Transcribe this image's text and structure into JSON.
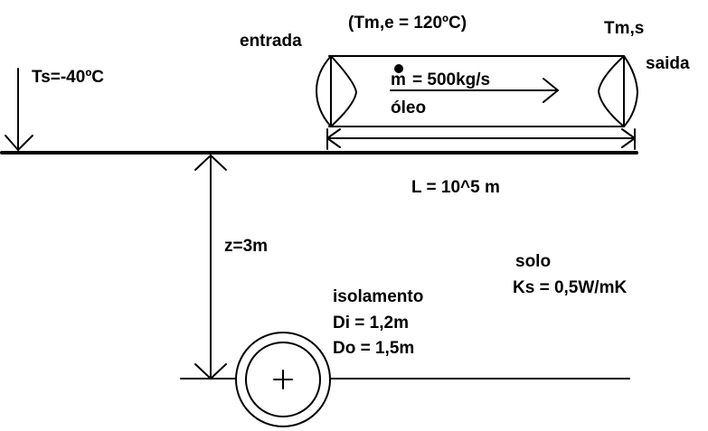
{
  "diagram": {
    "labels": {
      "inlet_temp": "(Tm,e = 120ºC)",
      "outlet_temp": "Tm,s",
      "inlet": "entrada",
      "outlet": "saida",
      "surface_temp": "Ts=-40ºC",
      "mass_flow_symbol": "m",
      "mass_flow": "= 500kg/s",
      "fluid": "óleo",
      "length": "L = 10^5 m",
      "depth": "z=3m",
      "soil": "solo",
      "soil_conductivity": "Ks = 0,5W/mK",
      "insulation": "isolamento",
      "inner_diameter": "Di = 1,2m",
      "outer_diameter": "Do = 1,5m"
    },
    "colors": {
      "ink": "#000000",
      "background": "#ffffff"
    }
  }
}
